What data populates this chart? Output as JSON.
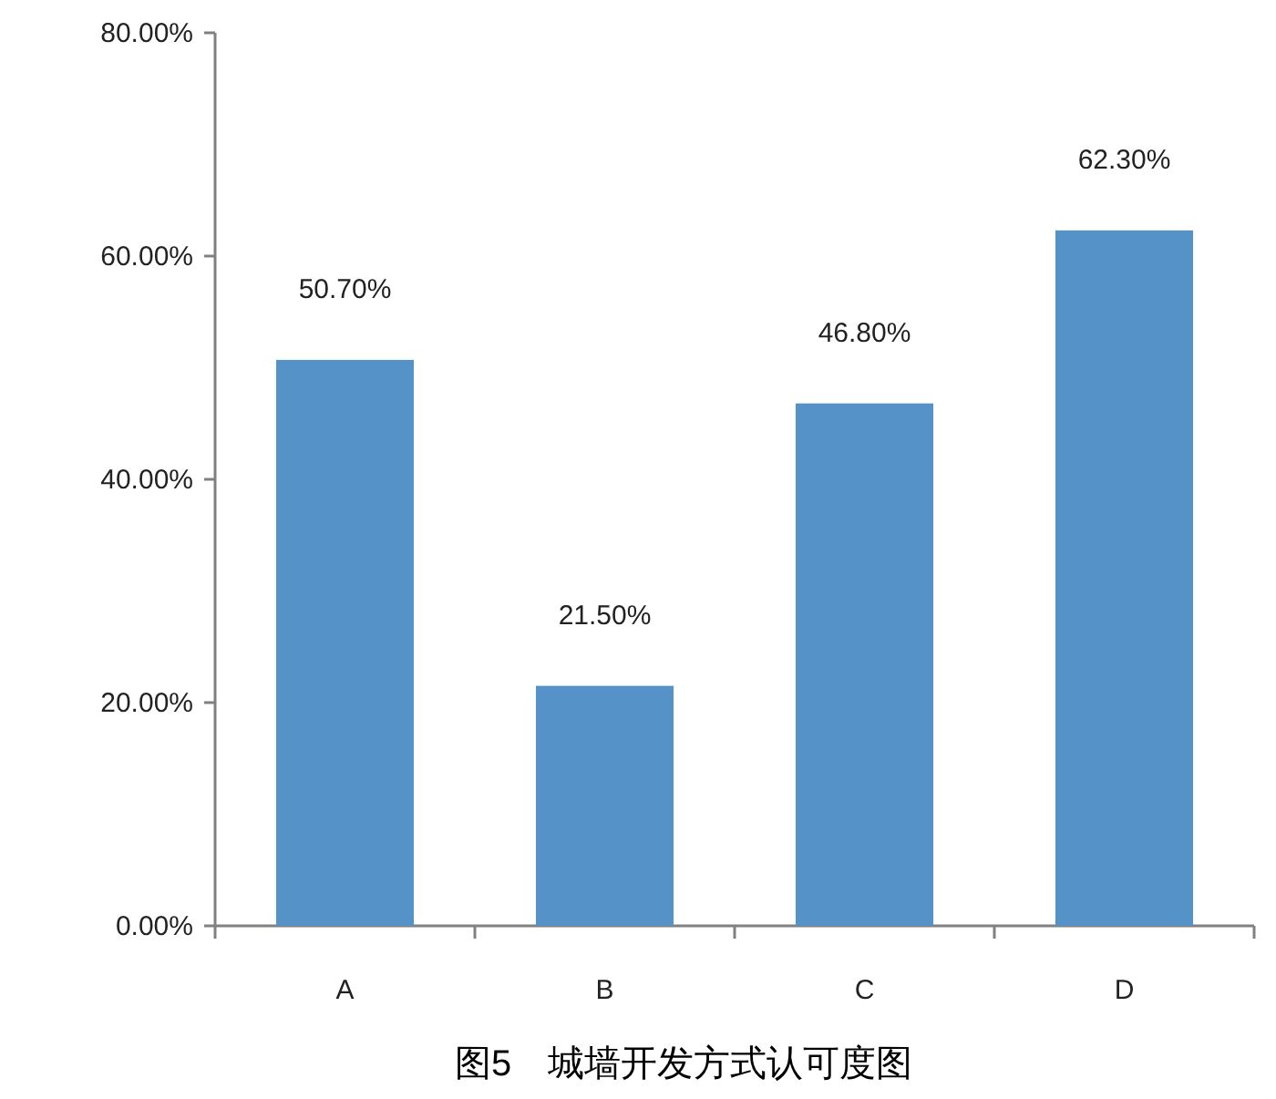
{
  "chart_data": {
    "type": "bar",
    "title": "图5　城墙开发方式认可度图",
    "categories": [
      "A",
      "B",
      "C",
      "D"
    ],
    "values": [
      50.7,
      21.5,
      46.8,
      62.3
    ],
    "value_labels": [
      "50.70%",
      "21.50%",
      "46.80%",
      "62.30%"
    ],
    "color": "#5592c8",
    "ylim": [
      0,
      80
    ],
    "yticks": [
      {
        "value": 0,
        "label": "0.00%"
      },
      {
        "value": 20,
        "label": "20.00%"
      },
      {
        "value": 40,
        "label": "40.00%"
      },
      {
        "value": 60,
        "label": "60.00%"
      },
      {
        "value": 80,
        "label": "80.00%"
      }
    ],
    "grid": false
  }
}
